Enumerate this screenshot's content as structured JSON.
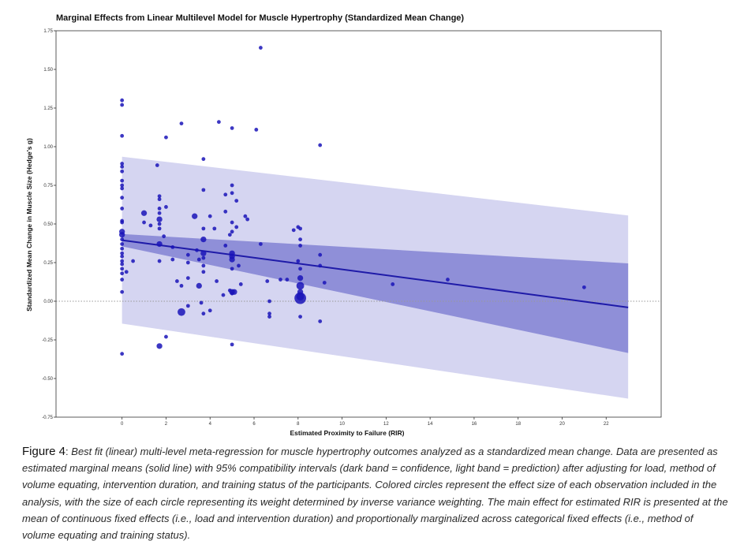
{
  "chart_data": {
    "type": "scatter",
    "title": "Marginal Effects from Linear Multilevel Model for Muscle Hypertrophy (Standardized Mean Change)",
    "xlabel": "Estimated Proximity to Failure (RIR)",
    "ylabel": "Standardized Mean Change in Muscle Size (Hedge's g)",
    "xlim": [
      -3,
      24.5
    ],
    "ylim": [
      -0.75,
      1.75
    ],
    "x_ticks": [
      0,
      2,
      4,
      6,
      8,
      10,
      12,
      14,
      16,
      18,
      20,
      22
    ],
    "x_tick_labels": [
      "0",
      "2",
      "4",
      "6",
      "8",
      "10",
      "12",
      "14",
      "16",
      "18",
      "20",
      "22"
    ],
    "y_ticks": [
      -0.75,
      -0.5,
      -0.25,
      0,
      0.25,
      0.5,
      0.75,
      1,
      1.25,
      1.5,
      1.75
    ],
    "y_tick_labels": [
      "-0.75",
      "-0.50",
      "-0.25",
      "0.00",
      "0.25",
      "0.50",
      "0.75",
      "1.00",
      "1.25",
      "1.50",
      "1.75"
    ],
    "reference_line_y": 0,
    "grid": false,
    "colors": {
      "points": "#1a14b8",
      "regression_line": "#1e1aa8",
      "confidence_band": "#8f8fd8",
      "prediction_band": "#d5d5f1",
      "reference_line": "#999999"
    },
    "regression_line": {
      "x": [
        0,
        23
      ],
      "y": [
        0.395,
        -0.04
      ]
    },
    "confidence_band": {
      "x": [
        0,
        23
      ],
      "upper": [
        0.435,
        0.245
      ],
      "lower": [
        0.355,
        -0.335
      ]
    },
    "prediction_band": {
      "x": [
        0,
        23
      ],
      "upper": [
        0.935,
        0.555
      ],
      "lower": [
        -0.145,
        -0.63
      ]
    },
    "points": [
      {
        "x": 0,
        "y": 1.3,
        "w": 1
      },
      {
        "x": 0,
        "y": 1.27,
        "w": 1
      },
      {
        "x": 0,
        "y": 1.07,
        "w": 1
      },
      {
        "x": 0,
        "y": 0.89,
        "w": 1
      },
      {
        "x": 0,
        "y": 0.87,
        "w": 1
      },
      {
        "x": 0,
        "y": 0.84,
        "w": 1
      },
      {
        "x": 0,
        "y": 0.78,
        "w": 1
      },
      {
        "x": 0,
        "y": 0.75,
        "w": 1
      },
      {
        "x": 0,
        "y": 0.73,
        "w": 1
      },
      {
        "x": 0,
        "y": 0.67,
        "w": 1
      },
      {
        "x": 0,
        "y": 0.6,
        "w": 1
      },
      {
        "x": 0,
        "y": 0.52,
        "w": 1
      },
      {
        "x": 0,
        "y": 0.51,
        "w": 1
      },
      {
        "x": 0,
        "y": 0.45,
        "w": 2
      },
      {
        "x": 0,
        "y": 0.43,
        "w": 2
      },
      {
        "x": 0,
        "y": 0.4,
        "w": 1
      },
      {
        "x": 0,
        "y": 0.37,
        "w": 1
      },
      {
        "x": 0,
        "y": 0.34,
        "w": 1
      },
      {
        "x": 0,
        "y": 0.31,
        "w": 1
      },
      {
        "x": 0,
        "y": 0.29,
        "w": 1
      },
      {
        "x": 0,
        "y": 0.26,
        "w": 1
      },
      {
        "x": 0,
        "y": 0.24,
        "w": 1
      },
      {
        "x": 0,
        "y": 0.21,
        "w": 1
      },
      {
        "x": 0,
        "y": 0.18,
        "w": 1
      },
      {
        "x": 0,
        "y": 0.14,
        "w": 1
      },
      {
        "x": 0,
        "y": 0.06,
        "w": 1
      },
      {
        "x": 0,
        "y": -0.34,
        "w": 1
      },
      {
        "x": 0.2,
        "y": 0.19,
        "w": 1
      },
      {
        "x": 0.5,
        "y": 0.26,
        "w": 1
      },
      {
        "x": 1,
        "y": 0.57,
        "w": 2
      },
      {
        "x": 1,
        "y": 0.51,
        "w": 1
      },
      {
        "x": 1.3,
        "y": 0.49,
        "w": 1
      },
      {
        "x": 1.6,
        "y": 0.88,
        "w": 1
      },
      {
        "x": 1.7,
        "y": 0.68,
        "w": 1
      },
      {
        "x": 1.7,
        "y": 0.66,
        "w": 1
      },
      {
        "x": 1.7,
        "y": 0.6,
        "w": 1
      },
      {
        "x": 1.7,
        "y": 0.57,
        "w": 1
      },
      {
        "x": 1.7,
        "y": 0.53,
        "w": 2
      },
      {
        "x": 1.7,
        "y": 0.5,
        "w": 1
      },
      {
        "x": 1.7,
        "y": 0.47,
        "w": 1
      },
      {
        "x": 1.7,
        "y": 0.37,
        "w": 2
      },
      {
        "x": 1.7,
        "y": 0.26,
        "w": 1
      },
      {
        "x": 1.7,
        "y": -0.29,
        "w": 2
      },
      {
        "x": 1.9,
        "y": 0.42,
        "w": 1
      },
      {
        "x": 2,
        "y": 1.06,
        "w": 1
      },
      {
        "x": 2,
        "y": 0.61,
        "w": 1
      },
      {
        "x": 2,
        "y": -0.23,
        "w": 1
      },
      {
        "x": 2.3,
        "y": 0.27,
        "w": 1
      },
      {
        "x": 2.3,
        "y": 0.35,
        "w": 1
      },
      {
        "x": 2.5,
        "y": 0.13,
        "w": 1
      },
      {
        "x": 2.7,
        "y": 1.15,
        "w": 1
      },
      {
        "x": 2.7,
        "y": 0.1,
        "w": 1
      },
      {
        "x": 2.7,
        "y": -0.07,
        "w": 3
      },
      {
        "x": 3,
        "y": 0.3,
        "w": 1
      },
      {
        "x": 3,
        "y": 0.25,
        "w": 1
      },
      {
        "x": 3,
        "y": 0.15,
        "w": 1
      },
      {
        "x": 3,
        "y": -0.03,
        "w": 1
      },
      {
        "x": 3.3,
        "y": 0.55,
        "w": 2
      },
      {
        "x": 3.4,
        "y": 0.33,
        "w": 1
      },
      {
        "x": 3.5,
        "y": 0.27,
        "w": 1
      },
      {
        "x": 3.5,
        "y": 0.1,
        "w": 2
      },
      {
        "x": 3.6,
        "y": -0.01,
        "w": 1
      },
      {
        "x": 3.7,
        "y": 0.92,
        "w": 1
      },
      {
        "x": 3.7,
        "y": 0.72,
        "w": 1
      },
      {
        "x": 3.7,
        "y": 0.47,
        "w": 1
      },
      {
        "x": 3.7,
        "y": 0.4,
        "w": 2
      },
      {
        "x": 3.7,
        "y": 0.31,
        "w": 2
      },
      {
        "x": 3.7,
        "y": 0.28,
        "w": 1
      },
      {
        "x": 3.7,
        "y": 0.23,
        "w": 1
      },
      {
        "x": 3.7,
        "y": 0.19,
        "w": 1
      },
      {
        "x": 3.7,
        "y": -0.08,
        "w": 1
      },
      {
        "x": 4,
        "y": 0.55,
        "w": 1
      },
      {
        "x": 4,
        "y": -0.06,
        "w": 1
      },
      {
        "x": 4.2,
        "y": 0.47,
        "w": 1
      },
      {
        "x": 4.3,
        "y": 0.13,
        "w": 1
      },
      {
        "x": 4.4,
        "y": 1.16,
        "w": 1
      },
      {
        "x": 4.6,
        "y": 0.04,
        "w": 1
      },
      {
        "x": 4.7,
        "y": 0.69,
        "w": 1
      },
      {
        "x": 4.7,
        "y": 0.58,
        "w": 1
      },
      {
        "x": 4.7,
        "y": 0.36,
        "w": 1
      },
      {
        "x": 4.9,
        "y": 0.07,
        "w": 1
      },
      {
        "x": 4.9,
        "y": 0.43,
        "w": 1
      },
      {
        "x": 5,
        "y": 1.12,
        "w": 1
      },
      {
        "x": 5,
        "y": 0.75,
        "w": 1
      },
      {
        "x": 5,
        "y": 0.7,
        "w": 1
      },
      {
        "x": 5,
        "y": 0.51,
        "w": 1
      },
      {
        "x": 5,
        "y": 0.45,
        "w": 1
      },
      {
        "x": 5,
        "y": 0.31,
        "w": 2
      },
      {
        "x": 5,
        "y": 0.29,
        "w": 2
      },
      {
        "x": 5,
        "y": 0.27,
        "w": 2
      },
      {
        "x": 5,
        "y": 0.21,
        "w": 1
      },
      {
        "x": 5,
        "y": 0.06,
        "w": 2
      },
      {
        "x": 5,
        "y": 0.05,
        "w": 1
      },
      {
        "x": 5,
        "y": -0.28,
        "w": 1
      },
      {
        "x": 5.1,
        "y": 0.06,
        "w": 2
      },
      {
        "x": 5.2,
        "y": 0.65,
        "w": 1
      },
      {
        "x": 5.2,
        "y": 0.48,
        "w": 1
      },
      {
        "x": 5.3,
        "y": 0.23,
        "w": 1
      },
      {
        "x": 5.4,
        "y": 0.11,
        "w": 1
      },
      {
        "x": 5.6,
        "y": 0.55,
        "w": 1
      },
      {
        "x": 5.7,
        "y": 0.53,
        "w": 1
      },
      {
        "x": 6.1,
        "y": 1.11,
        "w": 1
      },
      {
        "x": 6.3,
        "y": 1.64,
        "w": 1
      },
      {
        "x": 6.3,
        "y": 0.37,
        "w": 1
      },
      {
        "x": 6.6,
        "y": 0.13,
        "w": 1
      },
      {
        "x": 6.7,
        "y": 0,
        "w": 1
      },
      {
        "x": 6.7,
        "y": -0.08,
        "w": 1
      },
      {
        "x": 6.7,
        "y": -0.1,
        "w": 1
      },
      {
        "x": 7.2,
        "y": 0.14,
        "w": 1
      },
      {
        "x": 7.5,
        "y": 0.14,
        "w": 1
      },
      {
        "x": 7.8,
        "y": 0.46,
        "w": 1
      },
      {
        "x": 8,
        "y": 0.48,
        "w": 1
      },
      {
        "x": 8,
        "y": 0.26,
        "w": 1
      },
      {
        "x": 8.1,
        "y": 0.47,
        "w": 1
      },
      {
        "x": 8.1,
        "y": 0.4,
        "w": 1
      },
      {
        "x": 8.1,
        "y": 0.36,
        "w": 1
      },
      {
        "x": 8.1,
        "y": 0.21,
        "w": 1
      },
      {
        "x": 8.1,
        "y": 0.15,
        "w": 2
      },
      {
        "x": 8.1,
        "y": 0.1,
        "w": 3
      },
      {
        "x": 8.1,
        "y": 0.06,
        "w": 2
      },
      {
        "x": 8.1,
        "y": 0.03,
        "w": 3
      },
      {
        "x": 8.1,
        "y": 0.02,
        "w": 5
      },
      {
        "x": 8.1,
        "y": -0.1,
        "w": 1
      },
      {
        "x": 9,
        "y": 1.01,
        "w": 1
      },
      {
        "x": 9,
        "y": 0.3,
        "w": 1
      },
      {
        "x": 9,
        "y": 0.23,
        "w": 1
      },
      {
        "x": 9,
        "y": -0.13,
        "w": 1
      },
      {
        "x": 9.2,
        "y": 0.12,
        "w": 1
      },
      {
        "x": 12.3,
        "y": 0.11,
        "w": 1
      },
      {
        "x": 14.8,
        "y": 0.14,
        "w": 1
      },
      {
        "x": 21,
        "y": 0.09,
        "w": 1
      }
    ]
  },
  "caption": {
    "figure_label": "Figure 4",
    "colon": ":",
    "text": " Best fit (linear) multi-level meta-regression for muscle hypertrophy outcomes analyzed as a standardized mean change. Data are presented as estimated marginal means (solid line) with 95% compatibility intervals (dark band = confidence, light band = prediction) after adjusting for load, method of volume equating, intervention duration, and training status of the participants. Colored circles represent the effect size of each observation included in the analysis, with the size of each circle representing its weight determined by inverse variance weighting. The main effect for estimated RIR is presented at the mean of continuous fixed effects (i.e., load and intervention duration) and proportionally marginalized across categorical fixed effects (i.e., method of volume equating and training status)."
  }
}
